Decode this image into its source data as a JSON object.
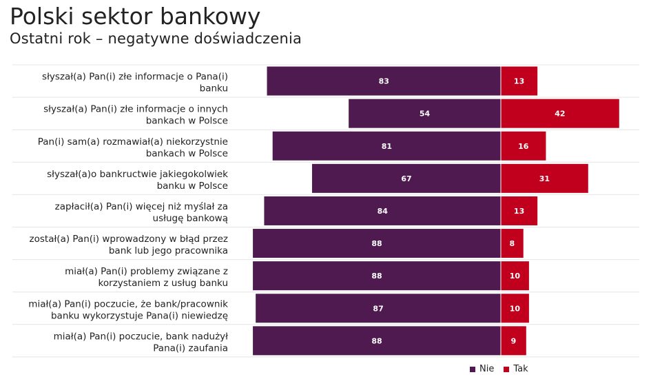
{
  "header": {
    "title": "Polski sektor bankowy",
    "subtitle": "Ostatni rok – negatywne doświadczenia"
  },
  "colors": {
    "nie": "#4e1a4f",
    "tak": "#c0001c",
    "row_line": "#e4e4e4"
  },
  "chart_data": {
    "type": "bar",
    "orientation": "horizontal-diverging",
    "categories": [
      [
        "słyszał(a) Pan(i) złe informacje o Pana(i)",
        "banku"
      ],
      [
        "słyszał(a) Pan(i) złe informacje o innych",
        "bankach w Polsce"
      ],
      [
        "Pan(i) sam(a) rozmawiał(a) niekorzystnie",
        "bankach w Polsce"
      ],
      [
        "słyszał(a)o bankructwie jakiegokolwiek",
        "banku w Polsce"
      ],
      [
        "zapłacił(a) Pan(i) więcej niż myślał za",
        "usługę bankową"
      ],
      [
        "został(a) Pan(i) wprowadzony w błąd przez",
        "bank lub jego pracownika"
      ],
      [
        "miał(a) Pan(i) problemy związane z",
        "korzystaniem z usług banku"
      ],
      [
        "miał(a) Pan(i) poczucie, że bank/pracownik",
        "banku wykorzystuje Pana(i) niewiedzę"
      ],
      [
        "miał(a) Pan(i) poczucie, bank nadużył",
        "Pana(i) zaufania"
      ]
    ],
    "series": [
      {
        "name": "Nie",
        "values": [
          83,
          54,
          81,
          67,
          84,
          88,
          88,
          87,
          88
        ]
      },
      {
        "name": "Tak",
        "values": [
          13,
          42,
          16,
          31,
          13,
          8,
          10,
          10,
          9
        ]
      }
    ],
    "legend_position": "bottom-right",
    "grid": false
  }
}
